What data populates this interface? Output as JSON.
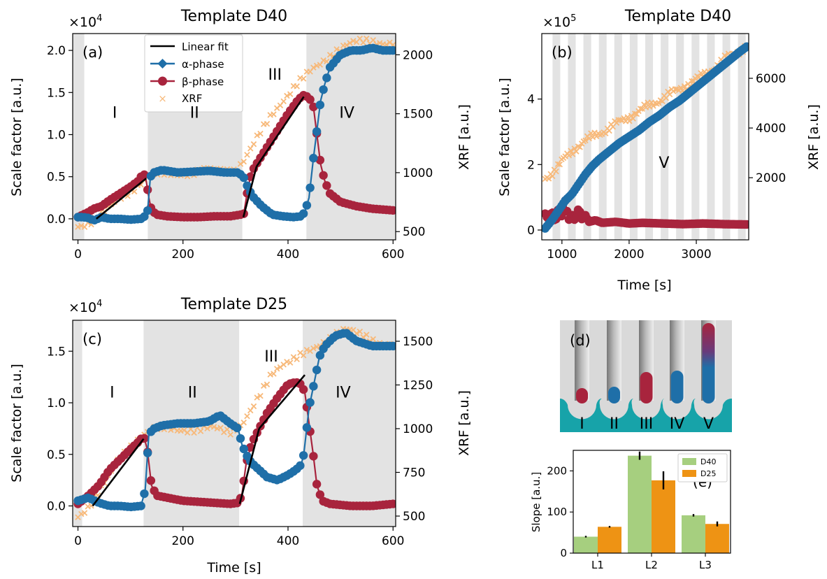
{
  "colors": {
    "alpha": "#1f6fa8",
    "beta": "#a8243d",
    "xrf": "#f7b97a",
    "fit": "#000000",
    "shade": "#e3e3e3",
    "d40": "#a6cf7f",
    "d25": "#ee9314",
    "teal": "#17a3a9",
    "grey": "#d9d9d9"
  },
  "chart_data": [
    {
      "id": "a",
      "type": "line",
      "panel_label": "(a)",
      "title": "Template D40",
      "ylabel": "Scale factor [a.u.]",
      "y2label": "XRF [a.u.]",
      "multiplier": "×10",
      "multiplier_exp": "4",
      "xlim": [
        -10,
        605
      ],
      "ylim": [
        -0.25,
        2.2
      ],
      "y2lim": [
        430,
        2180
      ],
      "xticks": [
        "0",
        "200",
        "400",
        "600"
      ],
      "yticks": [
        "0.0",
        "0.5",
        "1.0",
        "1.5",
        "2.0"
      ],
      "y2ticks": [
        "500",
        "1000",
        "1500",
        "2000"
      ],
      "shaded": [
        [
          -10,
          12
        ],
        [
          133,
          313
        ],
        [
          435,
          605
        ]
      ],
      "regions": [
        {
          "label": "I",
          "x": 70,
          "y": 1.2
        },
        {
          "label": "II",
          "x": 222,
          "y": 1.2
        },
        {
          "label": "III",
          "x": 375,
          "y": 1.65
        },
        {
          "label": "IV",
          "x": 512,
          "y": 1.2
        }
      ],
      "legend": [
        "Linear fit",
        "α-phase",
        "β-phase",
        "XRF"
      ],
      "fits": [
        [
          [
            35,
            0.0
          ],
          [
            130,
            0.48
          ]
        ],
        [
          [
            315,
            0.02
          ],
          [
            340,
            0.62
          ]
        ],
        [
          [
            340,
            0.62
          ],
          [
            430,
            1.45
          ]
        ]
      ],
      "series": [
        {
          "name": "α-phase",
          "x": [
            0,
            10,
            20,
            30,
            45,
            60,
            80,
            100,
            120,
            132,
            138,
            145,
            160,
            190,
            220,
            250,
            280,
            305,
            315,
            325,
            335,
            350,
            370,
            390,
            410,
            425,
            432,
            440,
            448,
            455,
            462,
            470,
            480,
            500,
            520,
            540,
            560,
            580,
            600
          ],
          "y": [
            0.02,
            0.02,
            0.01,
            -0.02,
            0.02,
            0.0,
            0.0,
            -0.01,
            0.0,
            0.05,
            0.5,
            0.55,
            0.58,
            0.55,
            0.56,
            0.57,
            0.55,
            0.55,
            0.5,
            0.35,
            0.25,
            0.15,
            0.05,
            0.03,
            0.02,
            0.03,
            0.08,
            0.25,
            0.7,
            1.05,
            1.4,
            1.6,
            1.8,
            1.95,
            2.0,
            2.0,
            2.03,
            2.0,
            2.0
          ]
        },
        {
          "name": "β-phase",
          "x": [
            0,
            10,
            20,
            30,
            45,
            60,
            80,
            100,
            115,
            125,
            130,
            135,
            140,
            150,
            170,
            200,
            230,
            260,
            290,
            310,
            315,
            322,
            330,
            340,
            360,
            380,
            400,
            420,
            430,
            440,
            448,
            455,
            462,
            470,
            480,
            500,
            530,
            560,
            600
          ],
          "y": [
            0.02,
            0.05,
            0.08,
            0.12,
            0.15,
            0.22,
            0.3,
            0.38,
            0.45,
            0.55,
            0.45,
            0.25,
            0.1,
            0.05,
            0.03,
            0.02,
            0.02,
            0.03,
            0.03,
            0.05,
            0.03,
            0.3,
            0.55,
            0.65,
            0.85,
            1.05,
            1.25,
            1.42,
            1.47,
            1.44,
            1.35,
            1.0,
            0.65,
            0.45,
            0.3,
            0.2,
            0.15,
            0.12,
            0.1
          ]
        },
        {
          "name": "XRF",
          "x": [
            0,
            20,
            40,
            60,
            80,
            100,
            120,
            135,
            150,
            180,
            210,
            240,
            270,
            300,
            315,
            330,
            350,
            370,
            390,
            410,
            430,
            450,
            470,
            490,
            510,
            530,
            560,
            600
          ],
          "y": [
            550,
            580,
            630,
            700,
            780,
            850,
            920,
            970,
            980,
            990,
            1000,
            1010,
            1020,
            1030,
            1100,
            1200,
            1350,
            1500,
            1620,
            1720,
            1800,
            1880,
            1960,
            2040,
            2080,
            2100,
            2120,
            2100
          ]
        }
      ]
    },
    {
      "id": "b",
      "type": "line",
      "panel_label": "(b)",
      "title": "Template D40",
      "ylabel": "Scale factor [a.u.]",
      "y2label": "XRF [a.u.]",
      "xlabel": "Time [s]",
      "multiplier": "×10",
      "multiplier_exp": "5",
      "xlim": [
        700,
        3780
      ],
      "ylim": [
        -0.3,
        6.0
      ],
      "y2lim": [
        -500,
        7800
      ],
      "xticks": [
        "1000",
        "2000",
        "3000"
      ],
      "yticks": [
        "0",
        "2",
        "4"
      ],
      "y2ticks": [
        "2000",
        "4000",
        "6000"
      ],
      "regions": [
        {
          "label": "V",
          "x": 2520,
          "y": 1.9
        }
      ],
      "series": [
        {
          "name": "α-phase",
          "x": [
            750,
            850,
            950,
            1050,
            1150,
            1250,
            1350,
            1450,
            1550,
            1700,
            1850,
            2000,
            2150,
            2300,
            2450,
            2600,
            2750,
            2900,
            3050,
            3200,
            3350,
            3500,
            3650,
            3750
          ],
          "y": [
            0.05,
            0.3,
            0.6,
            0.9,
            1.1,
            1.4,
            1.7,
            1.95,
            2.15,
            2.4,
            2.65,
            2.85,
            3.05,
            3.3,
            3.5,
            3.75,
            3.95,
            4.2,
            4.45,
            4.7,
            4.95,
            5.2,
            5.45,
            5.6
          ]
        },
        {
          "name": "β-phase",
          "x": [
            750,
            800,
            850,
            900,
            950,
            1000,
            1050,
            1100,
            1150,
            1200,
            1250,
            1300,
            1350,
            1400,
            1500,
            1600,
            1800,
            2000,
            2200,
            2500,
            2800,
            3100,
            3400,
            3750
          ],
          "y": [
            0.5,
            0.3,
            0.6,
            0.2,
            0.7,
            0.4,
            0.9,
            0.3,
            0.5,
            0.25,
            0.7,
            0.3,
            0.45,
            0.25,
            0.3,
            0.22,
            0.25,
            0.2,
            0.22,
            0.2,
            0.18,
            0.2,
            0.18,
            0.17
          ]
        },
        {
          "name": "XRF",
          "x": [
            750,
            900,
            1050,
            1200,
            1350,
            1500,
            1700,
            1900,
            2100,
            2300,
            2500,
            2700,
            2900,
            3100,
            3300,
            3500,
            3750
          ],
          "y": [
            2000,
            2300,
            2800,
            3200,
            3500,
            3700,
            4000,
            4300,
            4600,
            4900,
            5200,
            5500,
            5800,
            6100,
            6500,
            6900,
            7300
          ]
        }
      ]
    },
    {
      "id": "c",
      "type": "line",
      "panel_label": "(c)",
      "title": "Template D25",
      "ylabel": "Scale factor [a.u.]",
      "y2label": "XRF [a.u.]",
      "xlabel": "Time [s]",
      "multiplier": "×10",
      "multiplier_exp": "4",
      "xlim": [
        -10,
        605
      ],
      "ylim": [
        -0.2,
        1.8
      ],
      "y2lim": [
        440,
        1620
      ],
      "xticks": [
        "0",
        "200",
        "400",
        "600"
      ],
      "yticks": [
        "0.0",
        "0.5",
        "1.0",
        "1.5"
      ],
      "y2ticks": [
        "500",
        "750",
        "1000",
        "1250",
        "1500"
      ],
      "shaded": [
        [
          -10,
          8
        ],
        [
          125,
          307
        ],
        [
          428,
          605
        ]
      ],
      "regions": [
        {
          "label": "I",
          "x": 65,
          "y": 1.05
        },
        {
          "label": "II",
          "x": 218,
          "y": 1.05
        },
        {
          "label": "III",
          "x": 368,
          "y": 1.4
        },
        {
          "label": "IV",
          "x": 505,
          "y": 1.05
        }
      ],
      "fits": [
        [
          [
            28,
            0.0
          ],
          [
            125,
            0.65
          ]
        ],
        [
          [
            308,
            0.02
          ],
          [
            345,
            0.75
          ]
        ],
        [
          [
            345,
            0.75
          ],
          [
            432,
            1.27
          ]
        ]
      ],
      "series": [
        {
          "name": "α-phase",
          "x": [
            0,
            20,
            40,
            60,
            80,
            100,
            120,
            128,
            135,
            145,
            160,
            190,
            220,
            250,
            270,
            290,
            305,
            312,
            320,
            330,
            345,
            360,
            380,
            400,
            415,
            425,
            430,
            440,
            450,
            460,
            470,
            490,
            510,
            530,
            560,
            600
          ],
          "y": [
            0.05,
            0.08,
            0.03,
            0.0,
            0.0,
            -0.01,
            0.0,
            0.15,
            0.7,
            0.75,
            0.78,
            0.8,
            0.8,
            0.82,
            0.88,
            0.8,
            0.75,
            0.6,
            0.5,
            0.42,
            0.35,
            0.28,
            0.25,
            0.3,
            0.35,
            0.4,
            0.5,
            0.95,
            1.2,
            1.45,
            1.55,
            1.65,
            1.68,
            1.6,
            1.55,
            1.55
          ]
        },
        {
          "name": "β-phase",
          "x": [
            0,
            20,
            40,
            60,
            80,
            100,
            115,
            125,
            132,
            140,
            150,
            170,
            200,
            230,
            260,
            290,
            305,
            312,
            320,
            330,
            345,
            360,
            380,
            400,
            415,
            425,
            432,
            440,
            448,
            455,
            465,
            480,
            520,
            560,
            600
          ],
          "y": [
            0.02,
            0.1,
            0.2,
            0.35,
            0.45,
            0.55,
            0.62,
            0.68,
            0.55,
            0.2,
            0.1,
            0.08,
            0.05,
            0.04,
            0.03,
            0.02,
            0.03,
            0.1,
            0.4,
            0.6,
            0.75,
            0.9,
            1.05,
            1.18,
            1.2,
            1.18,
            1.1,
            0.8,
            0.5,
            0.2,
            0.05,
            0.02,
            0.0,
            0.0,
            0.02
          ]
        },
        {
          "name": "XRF",
          "x": [
            0,
            20,
            40,
            60,
            80,
            100,
            120,
            140,
            170,
            200,
            230,
            260,
            290,
            310,
            330,
            350,
            370,
            390,
            410,
            430,
            450,
            470,
            490,
            510,
            530,
            560,
            600
          ],
          "y": [
            500,
            560,
            640,
            730,
            830,
            900,
            960,
            990,
            1000,
            1000,
            990,
            1000,
            990,
            1020,
            1100,
            1200,
            1320,
            1380,
            1400,
            1420,
            1450,
            1500,
            1550,
            1570,
            1540,
            1510,
            1480
          ]
        }
      ]
    },
    {
      "id": "e",
      "type": "bar",
      "panel_label": "(e)",
      "ylabel": "Slope [a.u.]",
      "categories": [
        "L1",
        "L2",
        "L3"
      ],
      "ylim": [
        0,
        250
      ],
      "yticks": [
        "0",
        "100",
        "200"
      ],
      "series": [
        {
          "name": "D40",
          "values": [
            40,
            237,
            92
          ],
          "errors": [
            2,
            10,
            3
          ]
        },
        {
          "name": "D25",
          "values": [
            64,
            177,
            71
          ],
          "errors": [
            2,
            22,
            6
          ]
        }
      ]
    }
  ],
  "schematic": {
    "panel_label": "(d)",
    "labels": [
      "I",
      "II",
      "III",
      "IV",
      "V"
    ]
  }
}
